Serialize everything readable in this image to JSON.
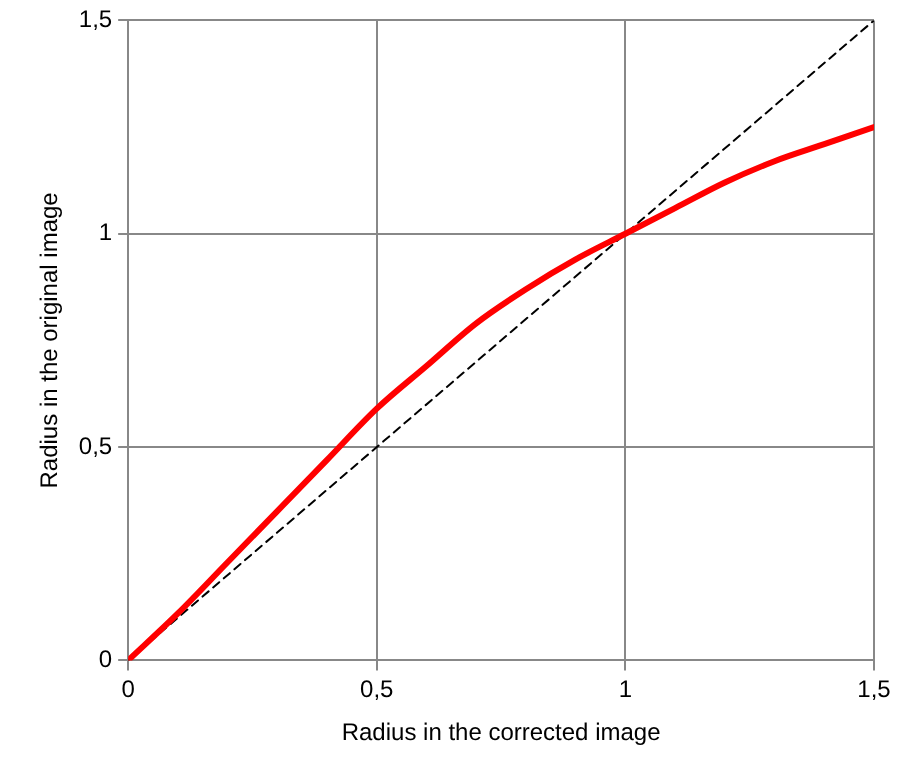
{
  "chart_data": {
    "type": "line",
    "xlabel": "Radius in the corrected image",
    "ylabel": "Radius in the original image",
    "xlim": [
      0,
      1.5
    ],
    "ylim": [
      0,
      1.5
    ],
    "xticks": [
      0,
      {
        "value": 0.5,
        "label": "0,5"
      },
      1,
      {
        "value": 1.5,
        "label": "1,5"
      }
    ],
    "yticks": [
      0,
      {
        "value": 0.5,
        "label": "0,5"
      },
      1,
      {
        "value": 1.5,
        "label": "1,5"
      }
    ],
    "grid": true,
    "legend": false,
    "marker": "none",
    "series": [
      {
        "color": "#ff0000",
        "line_style": "solid",
        "x": [
          0,
          0.1,
          0.2,
          0.3,
          0.4,
          0.5,
          0.6,
          0.7,
          0.8,
          0.9,
          1.0,
          1.1,
          1.2,
          1.3,
          1.4,
          1.5
        ],
        "values": [
          0,
          0.11,
          0.23,
          0.35,
          0.47,
          0.59,
          0.69,
          0.79,
          0.87,
          0.94,
          1.0,
          1.06,
          1.12,
          1.17,
          1.21,
          1.25
        ]
      },
      {
        "color": "#000000",
        "line_style": "dashed",
        "x": [
          0,
          1.5
        ],
        "values": [
          0,
          1.5
        ]
      }
    ]
  }
}
